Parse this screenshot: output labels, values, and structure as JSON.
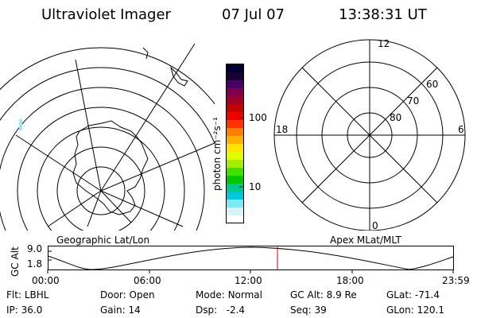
{
  "header": {
    "title": "Ultraviolet Imager",
    "date": "07 Jul 07",
    "time": "13:38:31 UT"
  },
  "colorbar": {
    "unit_label": "photon cm⁻²s⁻¹",
    "ticks": [
      "100",
      "10"
    ],
    "colors": [
      "#000033",
      "#1a0033",
      "#4a0066",
      "#80004d",
      "#a00026",
      "#c80000",
      "#f00000",
      "#ff3300",
      "#ff8000",
      "#ffb000",
      "#ffe600",
      "#e0ff00",
      "#a0f000",
      "#40e000",
      "#00c800",
      "#00c890",
      "#00c8d8",
      "#80e8f0",
      "#d8f4f8",
      "#ffffff"
    ]
  },
  "left_map": {
    "label": "Geographic Lat/Lon"
  },
  "right_map": {
    "label": "Apex  MLat/MLT",
    "mlt_labels": {
      "top": "12",
      "left": "18",
      "right": "6",
      "bottom": "0"
    },
    "lat_labels": [
      "60",
      "70",
      "80"
    ]
  },
  "timeline": {
    "ylabel": "GC Alt",
    "y_ticks": [
      "9.0",
      "1.8"
    ],
    "x_ticks": [
      "00:00",
      "06:00",
      "12:00",
      "18:00",
      "23:59"
    ],
    "marker_color": "#e00000"
  },
  "info": {
    "row1": [
      {
        "label": "Flt:",
        "value": "LBHL"
      },
      {
        "label": "Door:",
        "value": "Open"
      },
      {
        "label": "Mode:",
        "value": "Normal"
      },
      {
        "label": "GC Alt:",
        "value": "8.9 Re"
      },
      {
        "label": "GLat:",
        "value": "-71.4"
      }
    ],
    "row2": [
      {
        "label": "IP:",
        "value": "36.0"
      },
      {
        "label": "Gain:",
        "value": "14"
      },
      {
        "label": "Dsp:",
        "value": "-2.4"
      },
      {
        "label": "Seq:",
        "value": "39"
      },
      {
        "label": "GLon:",
        "value": "120.1"
      }
    ]
  }
}
